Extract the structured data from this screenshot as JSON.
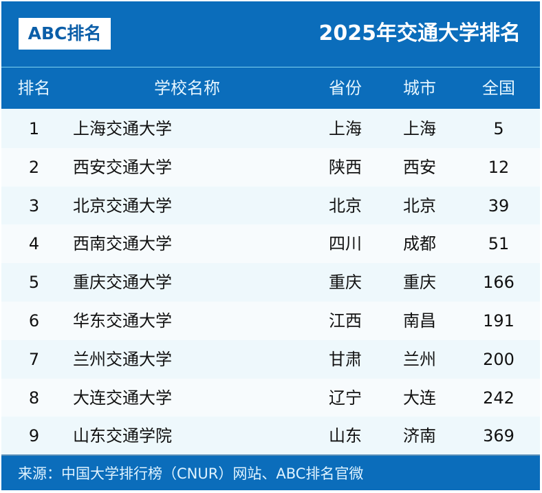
{
  "header": {
    "logo": "ABC排名",
    "title": "2025年交通大学排名"
  },
  "columns": [
    "排名",
    "学校名称",
    "省份",
    "城市",
    "全国"
  ],
  "rows": [
    [
      "1",
      "上海交通大学",
      "上海",
      "上海",
      "5"
    ],
    [
      "2",
      "西安交通大学",
      "陕西",
      "西安",
      "12"
    ],
    [
      "3",
      "北京交通大学",
      "北京",
      "北京",
      "39"
    ],
    [
      "4",
      "西南交通大学",
      "四川",
      "成都",
      "51"
    ],
    [
      "5",
      "重庆交通大学",
      "重庆",
      "重庆",
      "166"
    ],
    [
      "6",
      "华东交通大学",
      "江西",
      "南昌",
      "191"
    ],
    [
      "7",
      "兰州交通大学",
      "甘肃",
      "兰州",
      "200"
    ],
    [
      "8",
      "大连交通大学",
      "辽宁",
      "大连",
      "242"
    ],
    [
      "9",
      "山东交通学院",
      "山东",
      "济南",
      "369"
    ]
  ],
  "footer": {
    "source": "来源：中国大学排行榜（CNUR）网站、ABC排名官微"
  },
  "colors": {
    "primary": "#0b6dbb",
    "row_bg": "#eef8fc"
  }
}
